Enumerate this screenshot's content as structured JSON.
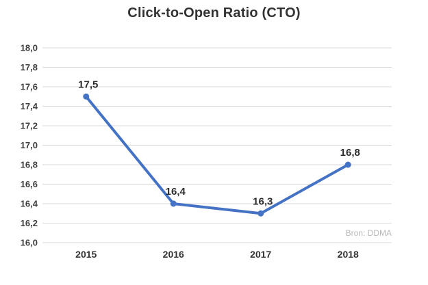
{
  "chart_data": {
    "type": "line",
    "title": "Click-to-Open Ratio (CTO)",
    "categories": [
      "2015",
      "2016",
      "2017",
      "2018"
    ],
    "values": [
      17.5,
      16.4,
      16.3,
      16.8
    ],
    "data_labels": [
      "17,5",
      "16,4",
      "16,3",
      "16,8"
    ],
    "y_tick_labels": [
      "16,0",
      "16,2",
      "16,4",
      "16,6",
      "16,8",
      "17,0",
      "17,2",
      "17,4",
      "17,6",
      "17,8",
      "18,0"
    ],
    "ylim": [
      16.0,
      18.0
    ],
    "y_tick_step": 0.2,
    "xlabel": "",
    "ylabel": "",
    "grid": "horizontal",
    "legend": "none",
    "source": "Bron: DDMA",
    "colors": {
      "line": "#4472C4",
      "marker": "#4472C4",
      "grid": "#d9d9d9",
      "title": "#333333",
      "axis_text": "#3d3d3d",
      "data_label": "#2b2b2b",
      "source_text": "#b9b9b9",
      "background": "#ffffff"
    }
  }
}
